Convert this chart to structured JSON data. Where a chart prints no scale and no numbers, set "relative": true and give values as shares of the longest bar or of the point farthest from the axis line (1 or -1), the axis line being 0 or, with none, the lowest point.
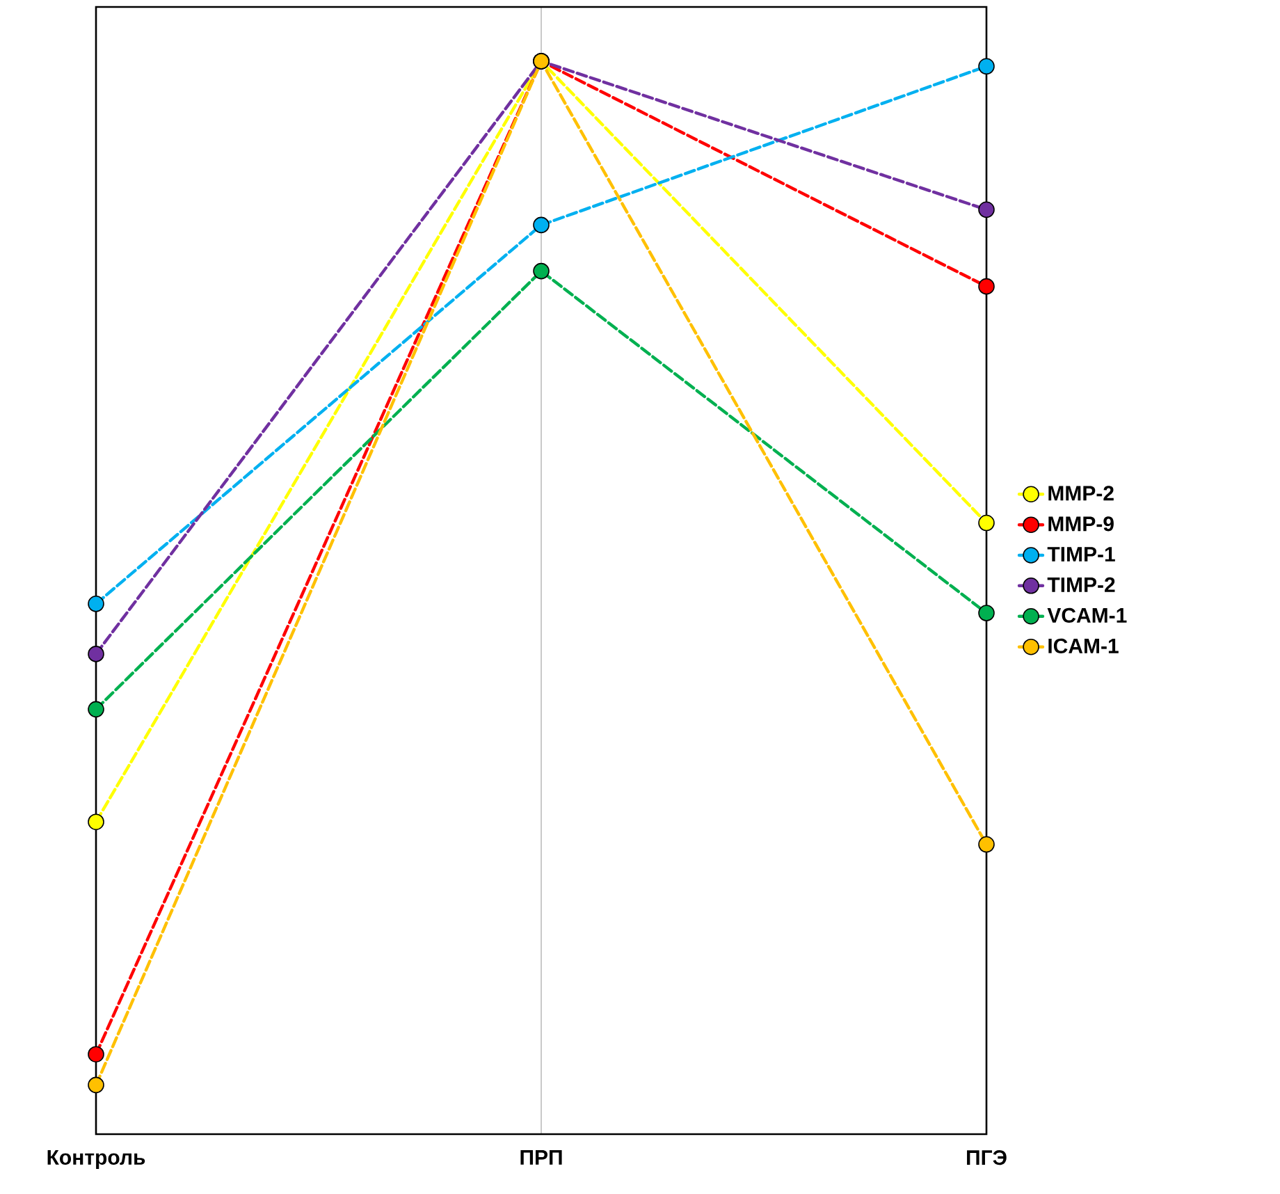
{
  "chart_data": {
    "type": "line",
    "relative": true,
    "categories": [
      "Контроль",
      "ПРП",
      "ПГЭ"
    ],
    "series": [
      {
        "name": "MMP-2",
        "color": "#ffff00",
        "values": [
          0.257,
          1,
          0.549
        ]
      },
      {
        "name": "MMP-9",
        "color": "#ff0000",
        "values": [
          0.03,
          1,
          0.78
        ]
      },
      {
        "name": "TIMP-1",
        "color": "#00b0f0",
        "values": [
          0.47,
          0.84,
          0.995
        ]
      },
      {
        "name": "TIMP-2",
        "color": "#7030a0",
        "values": [
          0.421,
          1,
          0.855
        ]
      },
      {
        "name": "VCAM-1",
        "color": "#00b050",
        "values": [
          0.367,
          0.795,
          0.461
        ]
      },
      {
        "name": "ICAM-1",
        "color": "#ffc000",
        "values": [
          0,
          1,
          0.235
        ]
      }
    ],
    "grid": "x",
    "legend": "right",
    "marker": "circle",
    "line_style": "dashed"
  }
}
